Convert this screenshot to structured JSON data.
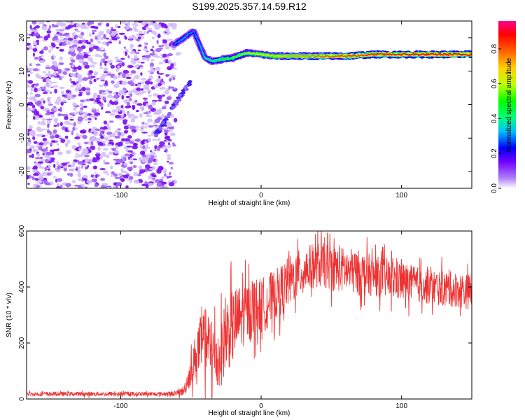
{
  "title": "S199.2025.357.14.59.R12",
  "chart_data": [
    {
      "type": "heatmap",
      "xlabel": "Height of straight line (km)",
      "ylabel": "Frequency (Hz)",
      "xlim": [
        -167,
        150
      ],
      "ylim": [
        -25,
        25
      ],
      "xticks": [
        -100,
        0,
        100
      ],
      "yticks": [
        -20,
        -10,
        0,
        10,
        20
      ],
      "colorbar": {
        "label": "Normalized spectral amplitude",
        "range": [
          0.0,
          0.96
        ],
        "ticks": [
          0.0,
          0.2,
          0.4,
          0.6,
          0.8
        ],
        "tick_labels": [
          "0.0",
          "0.2",
          "0.4",
          "0.6",
          "0.8"
        ]
      },
      "noise_region_x": [
        -167,
        -62
      ],
      "signal_ridge": {
        "x": [
          -62,
          -55,
          -48,
          -40,
          -35,
          -28,
          -20,
          -10,
          0,
          10,
          20,
          40,
          60,
          80,
          100,
          120,
          150
        ],
        "frequency_hz": [
          18,
          20,
          22,
          14,
          13,
          13.5,
          14,
          15.5,
          15,
          14.5,
          14.5,
          14.5,
          14.5,
          15,
          15,
          15,
          15
        ],
        "amplitude": [
          0.3,
          0.35,
          0.3,
          0.4,
          0.45,
          0.5,
          0.55,
          0.6,
          0.65,
          0.7,
          0.75,
          0.8,
          0.85,
          0.88,
          0.9,
          0.92,
          0.92
        ]
      },
      "secondary_branch": {
        "x": [
          -75,
          -70,
          -65,
          -60,
          -55,
          -50
        ],
        "frequency_hz": [
          -9,
          -6,
          -2,
          1,
          4,
          7
        ]
      }
    },
    {
      "type": "line",
      "xlabel": "Height of straight line (km)",
      "ylabel": "SNR (10 * v/v)",
      "xlim": [
        -167,
        150
      ],
      "ylim": [
        0,
        600
      ],
      "xticks": [
        -100,
        0,
        100
      ],
      "yticks": [
        0,
        200,
        400,
        600
      ],
      "series": [
        {
          "name": "SNR",
          "color": "#ee3333",
          "x": [
            -167,
            -150,
            -130,
            -110,
            -90,
            -70,
            -60,
            -55,
            -50,
            -45,
            -40,
            -35,
            -30,
            -25,
            -20,
            -15,
            -10,
            -5,
            0,
            5,
            10,
            20,
            30,
            40,
            50,
            60,
            70,
            80,
            90,
            100,
            110,
            120,
            130,
            140,
            150
          ],
          "y": [
            18,
            18,
            18,
            18,
            18,
            18,
            20,
            30,
            100,
            180,
            200,
            170,
            140,
            230,
            260,
            290,
            310,
            330,
            330,
            350,
            370,
            420,
            460,
            480,
            470,
            460,
            450,
            440,
            430,
            420,
            410,
            400,
            395,
            390,
            380
          ],
          "noise_amplitude": [
            8,
            8,
            8,
            8,
            8,
            8,
            10,
            20,
            60,
            110,
            140,
            140,
            130,
            150,
            150,
            130,
            120,
            120,
            110,
            110,
            100,
            100,
            90,
            90,
            90,
            90,
            90,
            80,
            80,
            80,
            70,
            70,
            70,
            70,
            70
          ]
        }
      ]
    }
  ]
}
